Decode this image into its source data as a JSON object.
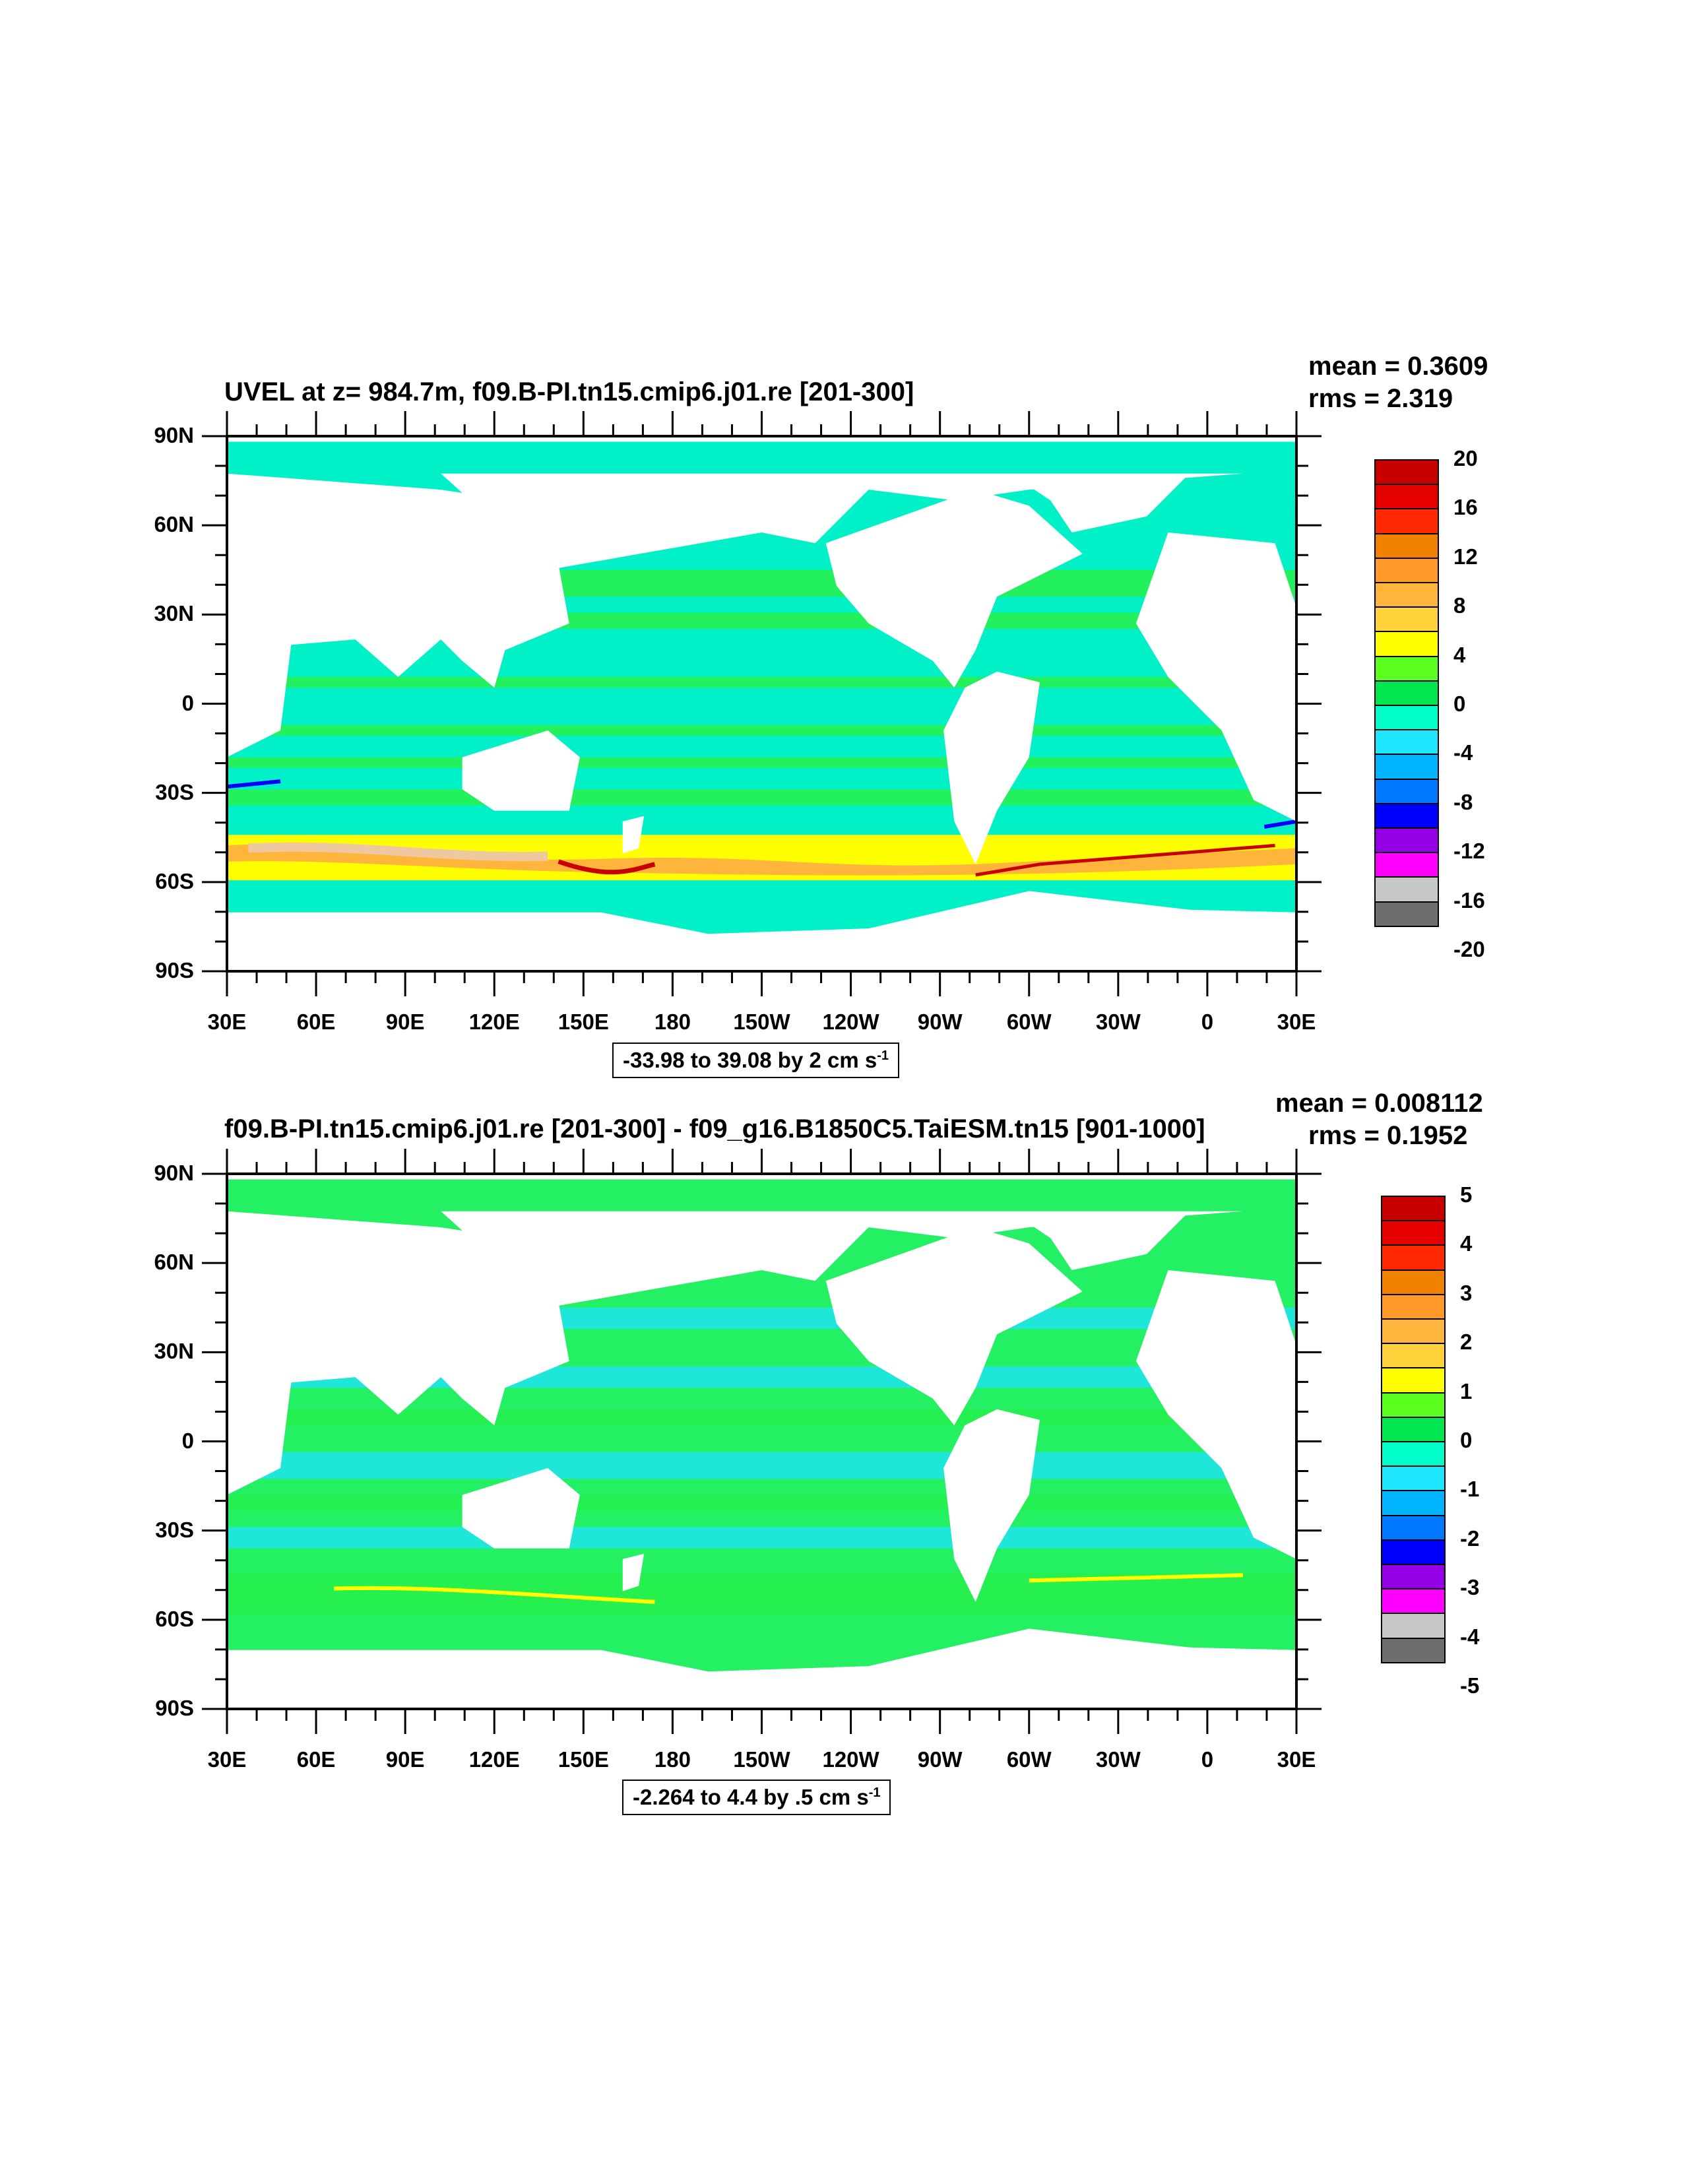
{
  "panels": [
    {
      "title": "UVEL at z= 984.7m, f09.B-PI.tn15.cmip6.j01.re [201-300]",
      "mean": "mean = 0.3609",
      "rms": "rms = 2.319",
      "range_text": "-33.98 to 39.08 by 2 cm s",
      "range_sup": "-1",
      "colorbar_labels": [
        "20",
        "16",
        "12",
        "8",
        "4",
        "0",
        "-4",
        "-8",
        "-12",
        "-16",
        "-20"
      ]
    },
    {
      "title": "f09.B-PI.tn15.cmip6.j01.re [201-300] - f09_g16.B1850C5.TaiESM.tn15 [901-1000]",
      "mean": "mean = 0.008112",
      "rms": "rms = 0.1952",
      "range_text": "-2.264 to 4.4 by .5 cm s",
      "range_sup": "-1",
      "colorbar_labels": [
        "5",
        "4",
        "3",
        "2",
        "1",
        "0",
        "-1",
        "-2",
        "-3",
        "-4",
        "-5"
      ]
    }
  ],
  "y_axis_labels": [
    "90N",
    "60N",
    "30N",
    "0",
    "30S",
    "60S",
    "90S"
  ],
  "x_axis_labels": [
    "30E",
    "60E",
    "90E",
    "120E",
    "150E",
    "180",
    "150W",
    "120W",
    "90W",
    "60W",
    "30W",
    "0",
    "30E"
  ],
  "colorbar_colors": [
    "#c80000",
    "#e60000",
    "#ff2800",
    "#f08200",
    "#ff9a28",
    "#ffb43c",
    "#ffd23c",
    "#ffff00",
    "#5aff1e",
    "#00e650",
    "#00ffc8",
    "#1ee6ff",
    "#00b4ff",
    "#0078ff",
    "#0000ff",
    "#9600e6",
    "#ff00ff",
    "#c8c8c8",
    "#6e6e6e"
  ],
  "colors": {
    "ocean_base_1": "#00f0c8",
    "ocean_base_2": "#24f064",
    "land": "#ffffff",
    "cyan": "#1ee6e6",
    "green": "#26f050",
    "yellow": "#ffff00",
    "orange": "#ffb43c",
    "peach": "#f0c8a0",
    "red": "#c80000",
    "blue": "#0000ff"
  }
}
